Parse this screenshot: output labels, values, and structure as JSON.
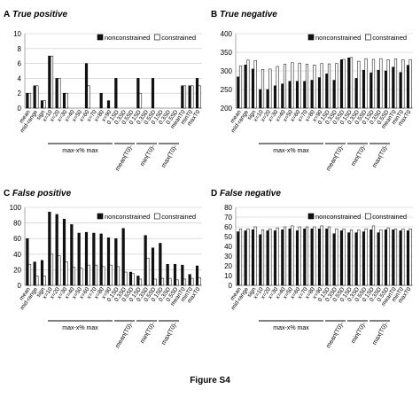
{
  "figure_label": "Figure S4",
  "chart_data": [
    {
      "type": "bar",
      "panel_letter": "A",
      "title": "True positive",
      "ylim": [
        0,
        10
      ],
      "yticks": [
        0,
        2,
        4,
        6,
        8,
        10
      ],
      "grid": true,
      "legend_position": "top-right",
      "categories": [
        "mean",
        "mid-range",
        "sign",
        "x=10",
        "x=20",
        "x=30",
        "x=40",
        "x=50",
        "x=60",
        "x=70",
        "x=80",
        "x=90",
        "0.1SD",
        "0.3SD",
        "0.5SD",
        "0.1SD",
        "0.3SD",
        "0.5SD",
        "0.1SD",
        "0.3SD",
        "0.5SD",
        "meanT0",
        "minT0",
        "maxT0"
      ],
      "series": [
        {
          "name": "nonconstrained",
          "values": [
            2,
            3,
            1,
            7,
            4,
            2,
            0,
            0,
            6,
            0,
            2,
            1,
            4,
            0,
            0,
            4,
            0,
            4,
            0,
            0,
            0,
            3,
            3,
            4
          ]
        },
        {
          "name": "constrained",
          "values": [
            2,
            3,
            1,
            7,
            4,
            2,
            0,
            0,
            3,
            0,
            0,
            0,
            0,
            0,
            0,
            2,
            0,
            0,
            0,
            0,
            0,
            3,
            3,
            3
          ]
        }
      ],
      "group_labels": [
        "max-x% max",
        "mean(T0)-",
        "min(T0)-",
        "max(T0)-"
      ]
    },
    {
      "type": "bar",
      "panel_letter": "B",
      "title": "True negative",
      "ylim": [
        200,
        400
      ],
      "yticks": [
        200,
        250,
        300,
        350,
        400
      ],
      "grid": true,
      "legend_position": "top-right",
      "categories": [
        "mean",
        "mid-range",
        "sign",
        "x=10",
        "x=20",
        "x=30",
        "x=40",
        "x=50",
        "x=60",
        "x=70",
        "x=80",
        "x=90",
        "0.1SD",
        "0.3SD",
        "0.5SD",
        "0.1SD",
        "0.3SD",
        "0.5SD",
        "0.1SD",
        "0.3SD",
        "0.5SD",
        "meanT0",
        "minT0",
        "maxT0"
      ],
      "series": [
        {
          "name": "nonconstrained",
          "values": [
            284,
            316,
            305,
            250,
            250,
            260,
            265,
            272,
            272,
            272,
            275,
            282,
            292,
            275,
            330,
            335,
            280,
            302,
            295,
            302,
            300,
            310,
            296,
            315
          ]
        },
        {
          "name": "constrained",
          "values": [
            313,
            329,
            328,
            304,
            305,
            312,
            318,
            322,
            321,
            318,
            316,
            320,
            319,
            320,
            331,
            336,
            326,
            333,
            331,
            333,
            330,
            332,
            330,
            330
          ]
        }
      ],
      "group_labels": [
        "max-x% max",
        "mean(T0)-",
        "min(T0)-",
        "max(T0)-"
      ]
    },
    {
      "type": "bar",
      "panel_letter": "C",
      "title": "False positive",
      "ylim": [
        0,
        100
      ],
      "yticks": [
        0,
        20,
        40,
        60,
        80,
        100
      ],
      "grid": true,
      "legend_position": "top-right",
      "categories": [
        "mean",
        "mid-range",
        "sign",
        "x=10",
        "x=20",
        "x=30",
        "x=40",
        "x=50",
        "x=60",
        "x=70",
        "x=80",
        "x=90",
        "0.1SD",
        "0.3SD",
        "0.5SD",
        "0.1SD",
        "0.3SD",
        "0.5SD",
        "0.1SD",
        "0.3SD",
        "0.5SD",
        "meanT0",
        "minT0",
        "maxT0"
      ],
      "series": [
        {
          "name": "nonconstrained",
          "values": [
            60,
            30,
            32,
            94,
            91,
            85,
            78,
            67,
            68,
            67,
            66,
            61,
            60,
            73,
            17,
            12,
            64,
            48,
            54,
            27,
            27,
            26,
            14,
            25
          ]
        },
        {
          "name": "constrained",
          "values": [
            27,
            12,
            12,
            40,
            38,
            30,
            23,
            22,
            26,
            26,
            24,
            26,
            24,
            17,
            15,
            8,
            35,
            8,
            9,
            9,
            7,
            8,
            9,
            10
          ]
        }
      ],
      "group_labels": [
        "max-x% max",
        "mean(T0)-",
        "min(T0)-",
        "max(T0)-"
      ]
    },
    {
      "type": "bar",
      "panel_letter": "D",
      "title": "False negative",
      "ylim": [
        0,
        80
      ],
      "yticks": [
        0,
        10,
        20,
        30,
        40,
        50,
        60,
        70,
        80
      ],
      "grid": true,
      "legend_position": "top-right",
      "categories": [
        "mean",
        "mid-range",
        "sign",
        "x=10",
        "x=20",
        "x=30",
        "x=40",
        "x=50",
        "x=60",
        "x=70",
        "x=80",
        "x=90",
        "0.1SD",
        "0.3SD",
        "0.5SD",
        "0.1SD",
        "0.3SD",
        "0.5SD",
        "0.1SD",
        "0.3SD",
        "0.5SD",
        "meanT0",
        "minT0",
        "maxT0"
      ],
      "series": [
        {
          "name": "nonconstrained",
          "values": [
            55,
            56,
            57,
            52,
            56,
            56,
            57,
            58,
            56,
            58,
            58,
            58,
            58,
            53,
            56,
            54,
            54,
            55,
            57,
            54,
            57,
            57,
            56,
            56
          ]
        },
        {
          "name": "constrained",
          "values": [
            58,
            58,
            60,
            57,
            58,
            59,
            60,
            61,
            60,
            60,
            60,
            61,
            60,
            58,
            58,
            57,
            57,
            58,
            61,
            57,
            59,
            58,
            58,
            58
          ]
        }
      ],
      "group_labels": [
        "max-x% max",
        "mean(T0)-",
        "min(T0)-",
        "max(T0)-"
      ]
    }
  ]
}
